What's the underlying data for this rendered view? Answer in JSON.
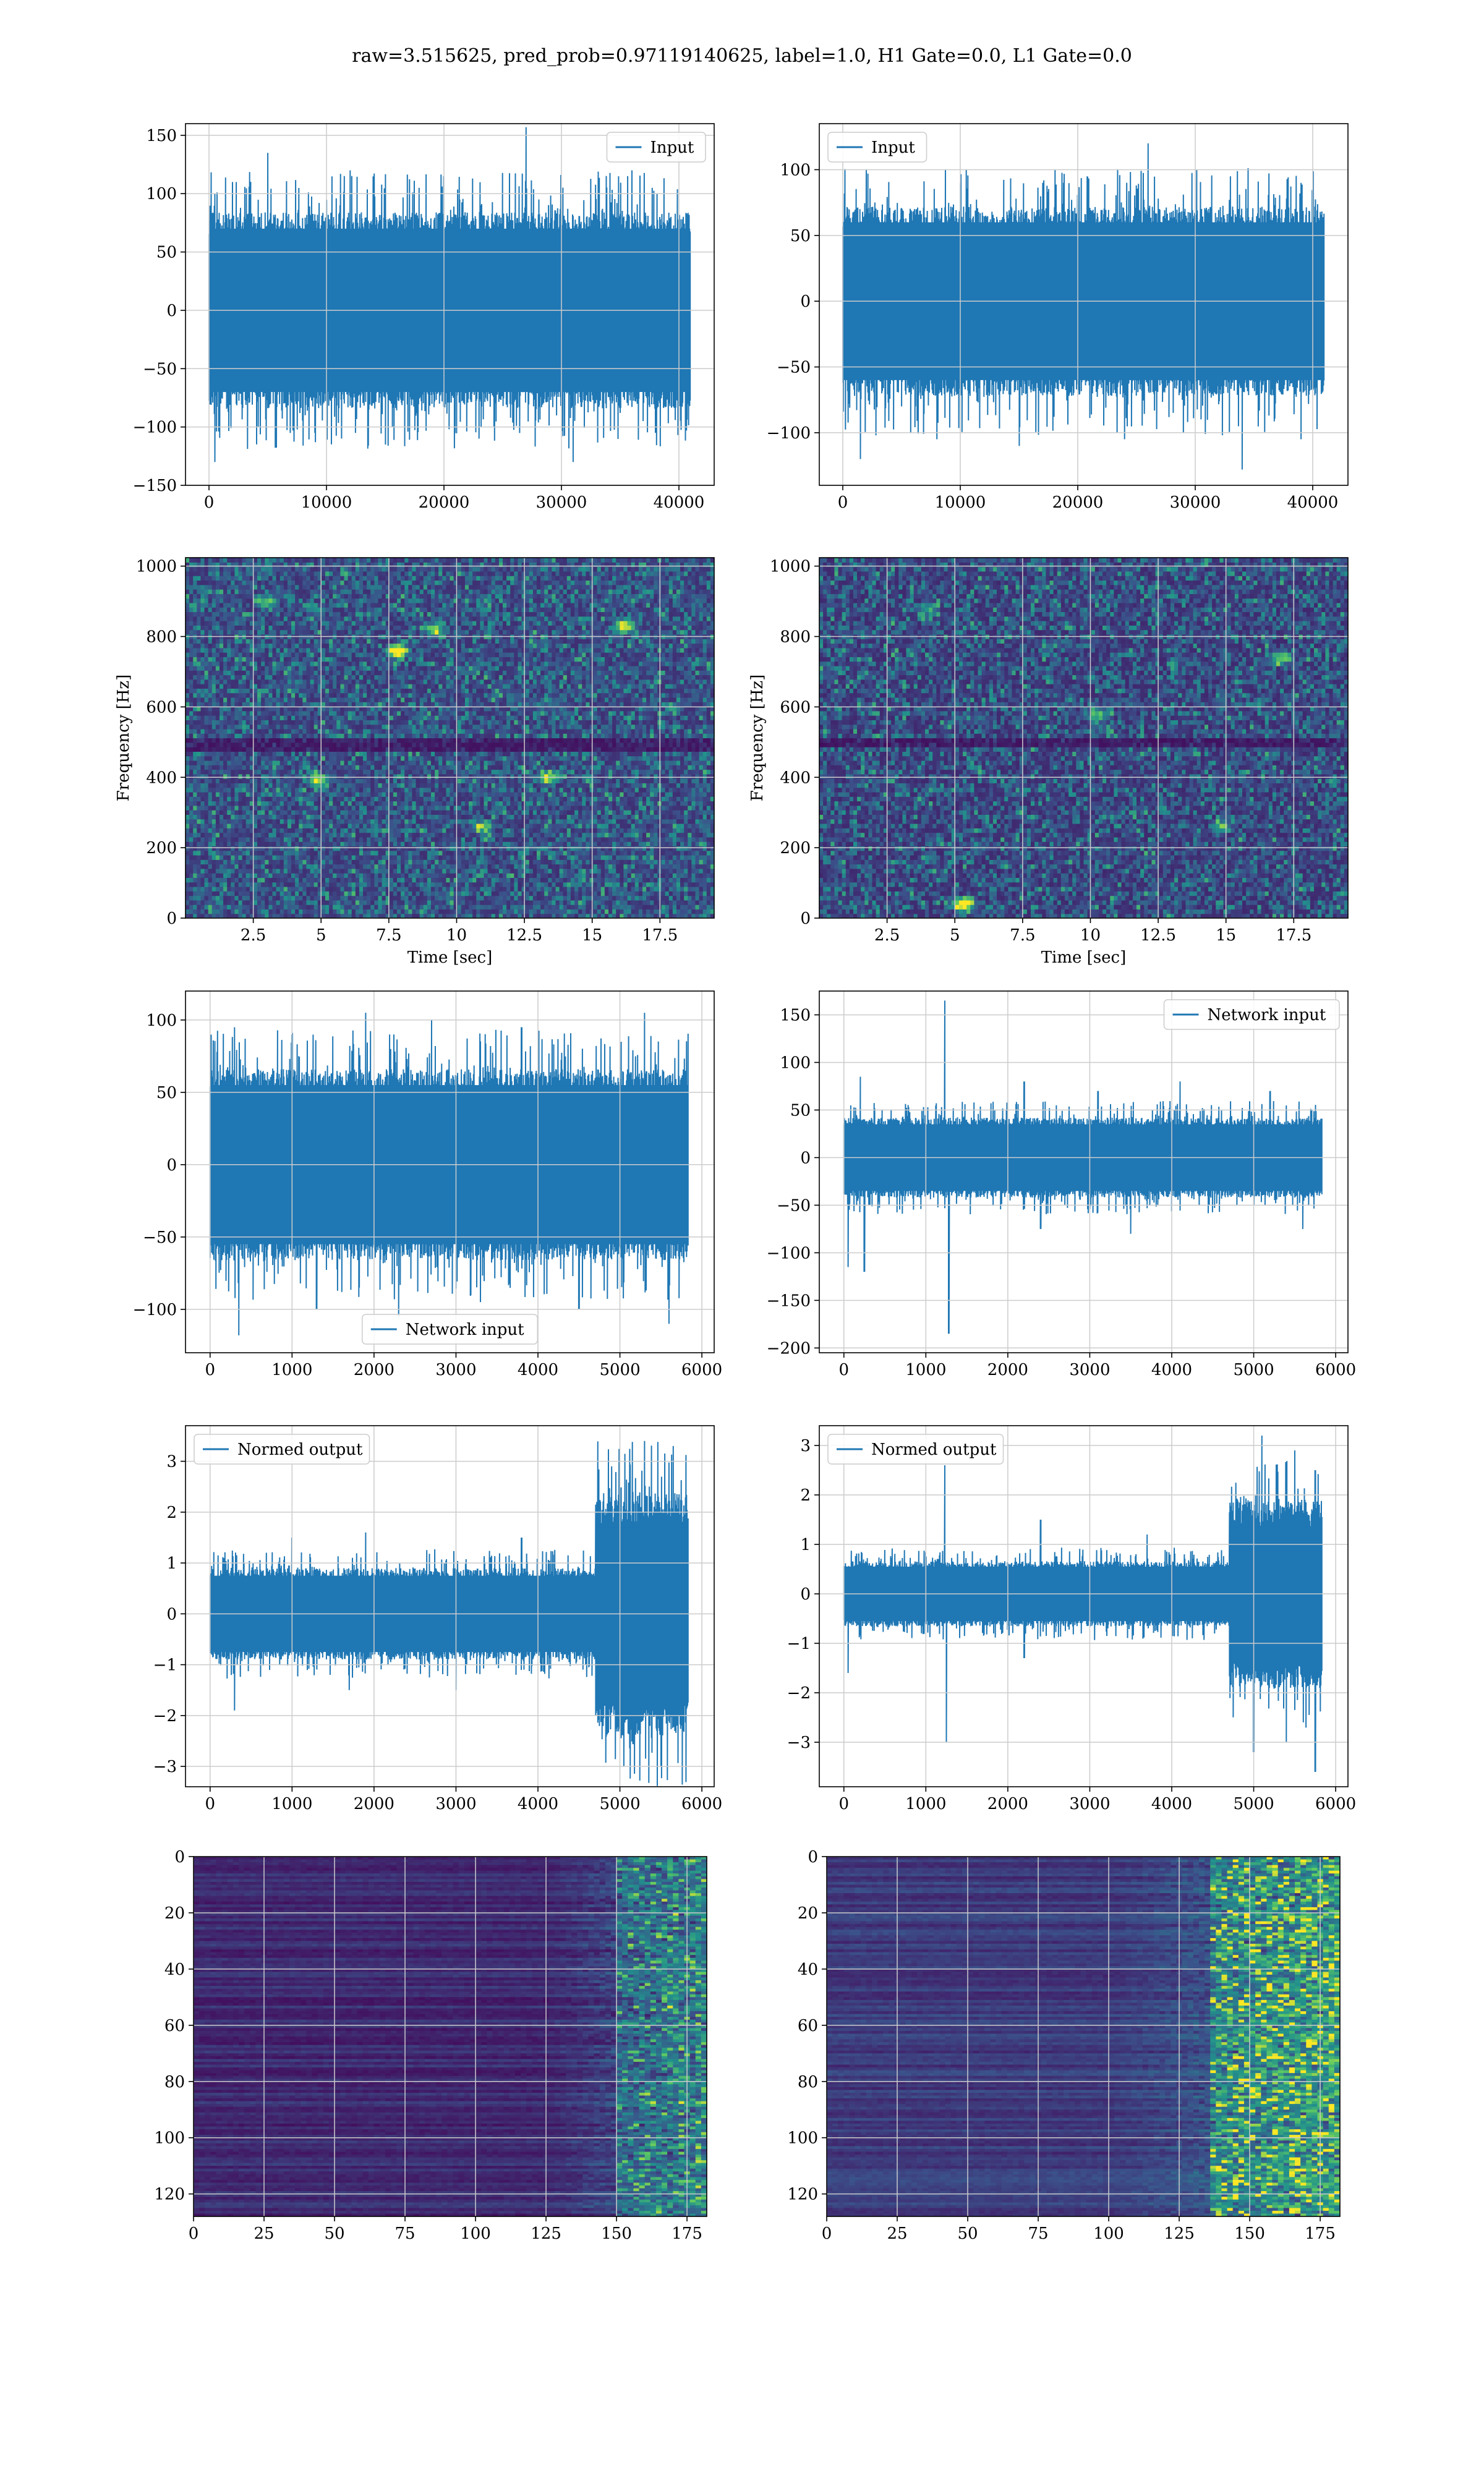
{
  "figure": {
    "suptitle": "raw=3.515625, pred_prob=0.97119140625, label=1.0, H1 Gate=0.0, L1 Gate=0.0"
  },
  "colors": {
    "series": "#1f77b4",
    "grid": "#cccccc",
    "viridis": [
      "#440154",
      "#3b528b",
      "#21918c",
      "#5ec962",
      "#fde725"
    ]
  },
  "chart_data": [
    {
      "id": "input_h1",
      "type": "line",
      "row": 0,
      "col": 0,
      "title": "",
      "xlabel": "",
      "ylabel": "",
      "legend": {
        "labels": [
          "Input"
        ],
        "loc": "upper right"
      },
      "xlim": [
        -2000,
        43000
      ],
      "ylim": [
        -150,
        160
      ],
      "xticks": [
        0,
        10000,
        20000,
        30000,
        40000
      ],
      "yticks": [
        -150,
        -100,
        -50,
        0,
        50,
        100,
        150
      ],
      "series": [
        {
          "name": "Input",
          "n_points": 40960,
          "envelope": {
            "x_start": 0,
            "x_end": 40960,
            "dense_upper": 70,
            "dense_lower": -70,
            "peak_upper": [
              [
                2000,
                110
              ],
              [
                5000,
                135
              ],
              [
                12000,
                120
              ],
              [
                20000,
                115
              ],
              [
                27000,
                157
              ],
              [
                36000,
                120
              ]
            ],
            "peak_lower": [
              [
                500,
                -130
              ],
              [
                9000,
                -105
              ],
              [
                15000,
                -115
              ],
              [
                23000,
                -110
              ],
              [
                31000,
                -130
              ],
              [
                38000,
                -105
              ]
            ]
          }
        }
      ],
      "grid": true
    },
    {
      "id": "input_l1",
      "type": "line",
      "row": 0,
      "col": 1,
      "title": "",
      "xlabel": "",
      "ylabel": "",
      "legend": {
        "labels": [
          "Input"
        ],
        "loc": "upper left"
      },
      "xlim": [
        -2000,
        43000
      ],
      "ylim": [
        -140,
        135
      ],
      "xticks": [
        0,
        10000,
        20000,
        30000,
        40000
      ],
      "yticks": [
        -100,
        -50,
        0,
        50,
        100
      ],
      "series": [
        {
          "name": "Input",
          "n_points": 40960,
          "envelope": {
            "x_start": 0,
            "x_end": 40960,
            "dense_upper": 60,
            "dense_lower": -60,
            "peak_upper": [
              [
                2000,
                100
              ],
              [
                10000,
                90
              ],
              [
                17000,
                90
              ],
              [
                26000,
                120
              ],
              [
                33000,
                95
              ],
              [
                39000,
                90
              ]
            ],
            "peak_lower": [
              [
                1500,
                -120
              ],
              [
                8000,
                -105
              ],
              [
                15000,
                -110
              ],
              [
                24000,
                -105
              ],
              [
                34000,
                -128
              ],
              [
                39000,
                -105
              ]
            ]
          }
        }
      ],
      "grid": true
    },
    {
      "id": "spec_h1",
      "type": "heatmap",
      "row": 1,
      "col": 0,
      "title": "",
      "xlabel": "Time [sec]",
      "ylabel": "Frequency [Hz]",
      "xlim": [
        0,
        19.5
      ],
      "ylim": [
        0,
        1024
      ],
      "xticks": [
        2.5,
        5.0,
        7.5,
        10.0,
        12.5,
        15.0,
        17.5
      ],
      "yticks": [
        0,
        200,
        400,
        600,
        800,
        1000
      ],
      "colormap": "viridis",
      "grid": true,
      "cells": {
        "nx": 140,
        "ny": 80,
        "seed": 11,
        "base": 0.14,
        "dark_bands_hz": [
          500,
          480
        ],
        "hotspots": [
          [
            7.8,
            760,
            0.9
          ],
          [
            16.2,
            830,
            0.8
          ],
          [
            4.9,
            390,
            0.7
          ],
          [
            13.4,
            400,
            0.6
          ],
          [
            11.0,
            260,
            0.5
          ],
          [
            3.0,
            900,
            0.5
          ],
          [
            9.2,
            820,
            0.55
          ]
        ]
      }
    },
    {
      "id": "spec_l1",
      "type": "heatmap",
      "row": 1,
      "col": 1,
      "title": "",
      "xlabel": "Time [sec]",
      "ylabel": "Frequency [Hz]",
      "xlim": [
        0,
        19.5
      ],
      "ylim": [
        0,
        1024
      ],
      "xticks": [
        2.5,
        5.0,
        7.5,
        10.0,
        12.5,
        15.0,
        17.5
      ],
      "yticks": [
        0,
        200,
        400,
        600,
        800,
        1000
      ],
      "colormap": "viridis",
      "grid": true,
      "cells": {
        "nx": 140,
        "ny": 80,
        "seed": 23,
        "base": 0.12,
        "dark_bands_hz": [
          500
        ],
        "hotspots": [
          [
            5.3,
            40,
            1.0
          ],
          [
            17.0,
            740,
            0.55
          ],
          [
            10.3,
            580,
            0.45
          ],
          [
            14.8,
            260,
            0.45
          ],
          [
            4.0,
            880,
            0.4
          ]
        ]
      }
    },
    {
      "id": "netin_h1",
      "type": "line",
      "row": 2,
      "col": 0,
      "title": "",
      "xlabel": "",
      "ylabel": "",
      "legend": {
        "labels": [
          "Network input"
        ],
        "loc": "lower center"
      },
      "xlim": [
        -300,
        6150
      ],
      "ylim": [
        -130,
        120
      ],
      "xticks": [
        0,
        1000,
        2000,
        3000,
        4000,
        5000,
        6000
      ],
      "yticks": [
        -100,
        -50,
        0,
        50,
        100
      ],
      "series": [
        {
          "name": "Network input",
          "n_points": 5832,
          "envelope": {
            "x_start": 0,
            "x_end": 5832,
            "dense_upper": 55,
            "dense_lower": -55,
            "peak_upper": [
              [
                300,
                95
              ],
              [
                1000,
                90
              ],
              [
                1900,
                105
              ],
              [
                2700,
                100
              ],
              [
                3800,
                95
              ],
              [
                5300,
                105
              ]
            ],
            "peak_lower": [
              [
                350,
                -118
              ],
              [
                1300,
                -100
              ],
              [
                2300,
                -105
              ],
              [
                3300,
                -95
              ],
              [
                4500,
                -100
              ],
              [
                5600,
                -110
              ]
            ]
          }
        }
      ],
      "grid": true
    },
    {
      "id": "netin_l1",
      "type": "line",
      "row": 2,
      "col": 1,
      "title": "",
      "xlabel": "",
      "ylabel": "",
      "legend": {
        "labels": [
          "Network input"
        ],
        "loc": "upper right"
      },
      "xlim": [
        -300,
        6150
      ],
      "ylim": [
        -205,
        175
      ],
      "xticks": [
        0,
        1000,
        2000,
        3000,
        4000,
        5000,
        6000
      ],
      "yticks": [
        -200,
        -150,
        -100,
        -50,
        0,
        50,
        100,
        150
      ],
      "series": [
        {
          "name": "Network input",
          "n_points": 5832,
          "envelope": {
            "x_start": 0,
            "x_end": 5832,
            "dense_upper": 35,
            "dense_lower": -35,
            "peak_upper": [
              [
                200,
                85
              ],
              [
                1230,
                165
              ],
              [
                2200,
                80
              ],
              [
                3100,
                70
              ],
              [
                4100,
                80
              ],
              [
                5200,
                70
              ]
            ],
            "peak_lower": [
              [
                50,
                -115
              ],
              [
                250,
                -120
              ],
              [
                1280,
                -185
              ],
              [
                2400,
                -75
              ],
              [
                3500,
                -80
              ],
              [
                5600,
                -75
              ]
            ]
          }
        }
      ],
      "grid": true
    },
    {
      "id": "normout_h1",
      "type": "line",
      "row": 3,
      "col": 0,
      "title": "",
      "xlabel": "",
      "ylabel": "",
      "legend": {
        "labels": [
          "Normed output"
        ],
        "loc": "upper left"
      },
      "xlim": [
        -300,
        6150
      ],
      "ylim": [
        -3.4,
        3.7
      ],
      "xticks": [
        0,
        1000,
        2000,
        3000,
        4000,
        5000,
        6000
      ],
      "yticks": [
        -3,
        -2,
        -1,
        0,
        1,
        2,
        3
      ],
      "series": [
        {
          "name": "Normed output",
          "n_points": 5832,
          "envelope": {
            "x_start": 0,
            "x_end": 5832,
            "dense_upper": 0.75,
            "dense_lower": -0.75,
            "loud_from": 4700,
            "loud_upper": 2.0,
            "loud_lower": -2.0,
            "peak_upper": [
              [
                1000,
                1.5
              ],
              [
                1900,
                1.6
              ],
              [
                3800,
                1.5
              ],
              [
                4900,
                2.9
              ],
              [
                5300,
                3.4
              ],
              [
                5650,
                3.3
              ]
            ],
            "peak_lower": [
              [
                300,
                -1.9
              ],
              [
                1700,
                -1.5
              ],
              [
                3000,
                -1.5
              ],
              [
                5050,
                -3.0
              ],
              [
                5500,
                -3.0
              ],
              [
                5700,
                -2.2
              ]
            ]
          }
        }
      ],
      "grid": true
    },
    {
      "id": "normout_l1",
      "type": "line",
      "row": 3,
      "col": 1,
      "title": "",
      "xlabel": "",
      "ylabel": "",
      "legend": {
        "labels": [
          "Normed output"
        ],
        "loc": "upper left"
      },
      "xlim": [
        -300,
        6150
      ],
      "ylim": [
        -3.9,
        3.4
      ],
      "xticks": [
        0,
        1000,
        2000,
        3000,
        4000,
        5000,
        6000
      ],
      "yticks": [
        -3,
        -2,
        -1,
        0,
        1,
        2,
        3
      ],
      "series": [
        {
          "name": "Normed output",
          "n_points": 5832,
          "envelope": {
            "x_start": 0,
            "x_end": 5832,
            "dense_upper": 0.55,
            "dense_lower": -0.55,
            "loud_from": 4700,
            "loud_upper": 1.6,
            "loud_lower": -1.6,
            "peak_upper": [
              [
                1230,
                2.6
              ],
              [
                2400,
                1.5
              ],
              [
                3700,
                1.2
              ],
              [
                5100,
                3.2
              ],
              [
                5500,
                2.9
              ],
              [
                5750,
                2.5
              ]
            ],
            "peak_lower": [
              [
                50,
                -1.6
              ],
              [
                1250,
                -3.0
              ],
              [
                2200,
                -1.3
              ],
              [
                5000,
                -3.2
              ],
              [
                5400,
                -3.0
              ],
              [
                5750,
                -3.6
              ]
            ]
          }
        }
      ],
      "grid": true
    },
    {
      "id": "act_h1",
      "type": "heatmap",
      "row": 4,
      "col": 0,
      "title": "",
      "xlabel": "",
      "ylabel": "",
      "xlim": [
        0,
        182
      ],
      "ylim": [
        128,
        0
      ],
      "xticks": [
        0,
        25,
        50,
        75,
        100,
        125,
        150,
        175
      ],
      "yticks": [
        0,
        20,
        40,
        60,
        80,
        100,
        120
      ],
      "colormap": "viridis",
      "grid": true,
      "cells": {
        "nx": 91,
        "ny": 128,
        "seed": 37,
        "base": 0.04,
        "active_from": 125,
        "peak_from": 150,
        "active_gain": 0.55
      }
    },
    {
      "id": "act_l1",
      "type": "heatmap",
      "row": 4,
      "col": 1,
      "title": "",
      "xlabel": "",
      "ylabel": "",
      "xlim": [
        0,
        182
      ],
      "ylim": [
        128,
        0
      ],
      "xticks": [
        0,
        25,
        50,
        75,
        100,
        125,
        150,
        175
      ],
      "yticks": [
        0,
        20,
        40,
        60,
        80,
        100,
        120
      ],
      "colormap": "viridis",
      "grid": true,
      "cells": {
        "nx": 91,
        "ny": 128,
        "seed": 53,
        "base": 0.09,
        "active_from": 100,
        "peak_from": 135,
        "active_gain": 0.85
      }
    }
  ]
}
